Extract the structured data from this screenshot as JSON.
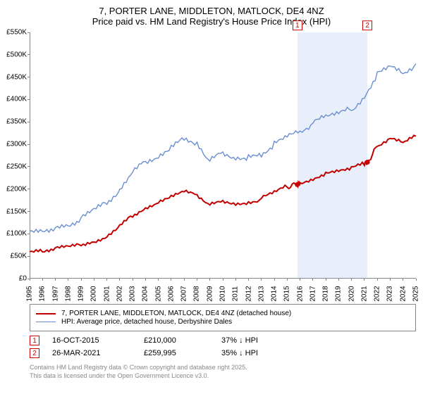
{
  "title": {
    "line1": "7, PORTER LANE, MIDDLETON, MATLOCK, DE4 4NZ",
    "line2": "Price paid vs. HM Land Registry's House Price Index (HPI)"
  },
  "chart": {
    "type": "line",
    "background_color": "#ffffff",
    "border_color": "#888888",
    "x": {
      "min": 1995,
      "max": 2025,
      "ticks": [
        1995,
        1996,
        1997,
        1998,
        1999,
        2000,
        2001,
        2002,
        2003,
        2004,
        2005,
        2006,
        2007,
        2008,
        2009,
        2010,
        2011,
        2012,
        2013,
        2014,
        2015,
        2016,
        2017,
        2018,
        2019,
        2020,
        2021,
        2022,
        2023,
        2024,
        2025
      ]
    },
    "y": {
      "min": 0,
      "max": 550000,
      "ticks": [
        0,
        50000,
        100000,
        150000,
        200000,
        250000,
        300000,
        350000,
        400000,
        450000,
        500000,
        550000
      ],
      "labels": [
        "£0",
        "£50K",
        "£100K",
        "£150K",
        "£200K",
        "£250K",
        "£300K",
        "£350K",
        "£400K",
        "£450K",
        "£500K",
        "£550K"
      ]
    },
    "band": {
      "start": 2015.79,
      "end": 2021.23,
      "fill": "rgba(100,150,220,0.15)"
    },
    "series": [
      {
        "name": "property",
        "color": "#c00000",
        "width": 2,
        "points": [
          [
            1995,
            60000
          ],
          [
            1996,
            62000
          ],
          [
            1997,
            65000
          ],
          [
            1998,
            70000
          ],
          [
            1999,
            78000
          ],
          [
            2000,
            85000
          ],
          [
            2001,
            95000
          ],
          [
            2002,
            115000
          ],
          [
            2003,
            140000
          ],
          [
            2004,
            160000
          ],
          [
            2005,
            170000
          ],
          [
            2006,
            180000
          ],
          [
            2007,
            192000
          ],
          [
            2008,
            185000
          ],
          [
            2009,
            165000
          ],
          [
            2010,
            175000
          ],
          [
            2011,
            170000
          ],
          [
            2012,
            172000
          ],
          [
            2013,
            178000
          ],
          [
            2014,
            190000
          ],
          [
            2015,
            205000
          ],
          [
            2015.79,
            210000
          ],
          [
            2016,
            215000
          ],
          [
            2017,
            225000
          ],
          [
            2018,
            235000
          ],
          [
            2019,
            238000
          ],
          [
            2020,
            245000
          ],
          [
            2021,
            258000
          ],
          [
            2021.23,
            259995
          ],
          [
            2022,
            295000
          ],
          [
            2023,
            310000
          ],
          [
            2024,
            302000
          ],
          [
            2025,
            318000
          ]
        ]
      },
      {
        "name": "hpi",
        "color": "#6a8fd0",
        "width": 1.4,
        "points": [
          [
            1995,
            100000
          ],
          [
            1996,
            105000
          ],
          [
            1997,
            112000
          ],
          [
            1998,
            122000
          ],
          [
            1999,
            135000
          ],
          [
            2000,
            150000
          ],
          [
            2001,
            170000
          ],
          [
            2002,
            200000
          ],
          [
            2003,
            235000
          ],
          [
            2004,
            265000
          ],
          [
            2005,
            275000
          ],
          [
            2006,
            290000
          ],
          [
            2007,
            310000
          ],
          [
            2008,
            300000
          ],
          [
            2009,
            260000
          ],
          [
            2010,
            280000
          ],
          [
            2011,
            270000
          ],
          [
            2012,
            272000
          ],
          [
            2013,
            280000
          ],
          [
            2014,
            298000
          ],
          [
            2015,
            315000
          ],
          [
            2016,
            330000
          ],
          [
            2017,
            348000
          ],
          [
            2018,
            360000
          ],
          [
            2019,
            365000
          ],
          [
            2020,
            378000
          ],
          [
            2021,
            410000
          ],
          [
            2022,
            455000
          ],
          [
            2023,
            472000
          ],
          [
            2024,
            460000
          ],
          [
            2025,
            480000
          ]
        ]
      }
    ],
    "sale_markers": [
      {
        "n": "1",
        "x": 2015.79,
        "y": 210000
      },
      {
        "n": "2",
        "x": 2021.23,
        "y": 259995
      }
    ]
  },
  "legend": {
    "rows": [
      {
        "color": "#c00000",
        "width": 2,
        "label": "7, PORTER LANE, MIDDLETON, MATLOCK, DE4 4NZ (detached house)"
      },
      {
        "color": "#6a8fd0",
        "width": 1.4,
        "label": "HPI: Average price, detached house, Derbyshire Dales"
      }
    ]
  },
  "sales": [
    {
      "n": "1",
      "date": "16-OCT-2015",
      "price": "£210,000",
      "hpi": "37% ↓ HPI"
    },
    {
      "n": "2",
      "date": "26-MAR-2021",
      "price": "£259,995",
      "hpi": "35% ↓ HPI"
    }
  ],
  "footer": {
    "line1": "Contains HM Land Registry data © Crown copyright and database right 2025.",
    "line2": "This data is licensed under the Open Government Licence v3.0."
  }
}
